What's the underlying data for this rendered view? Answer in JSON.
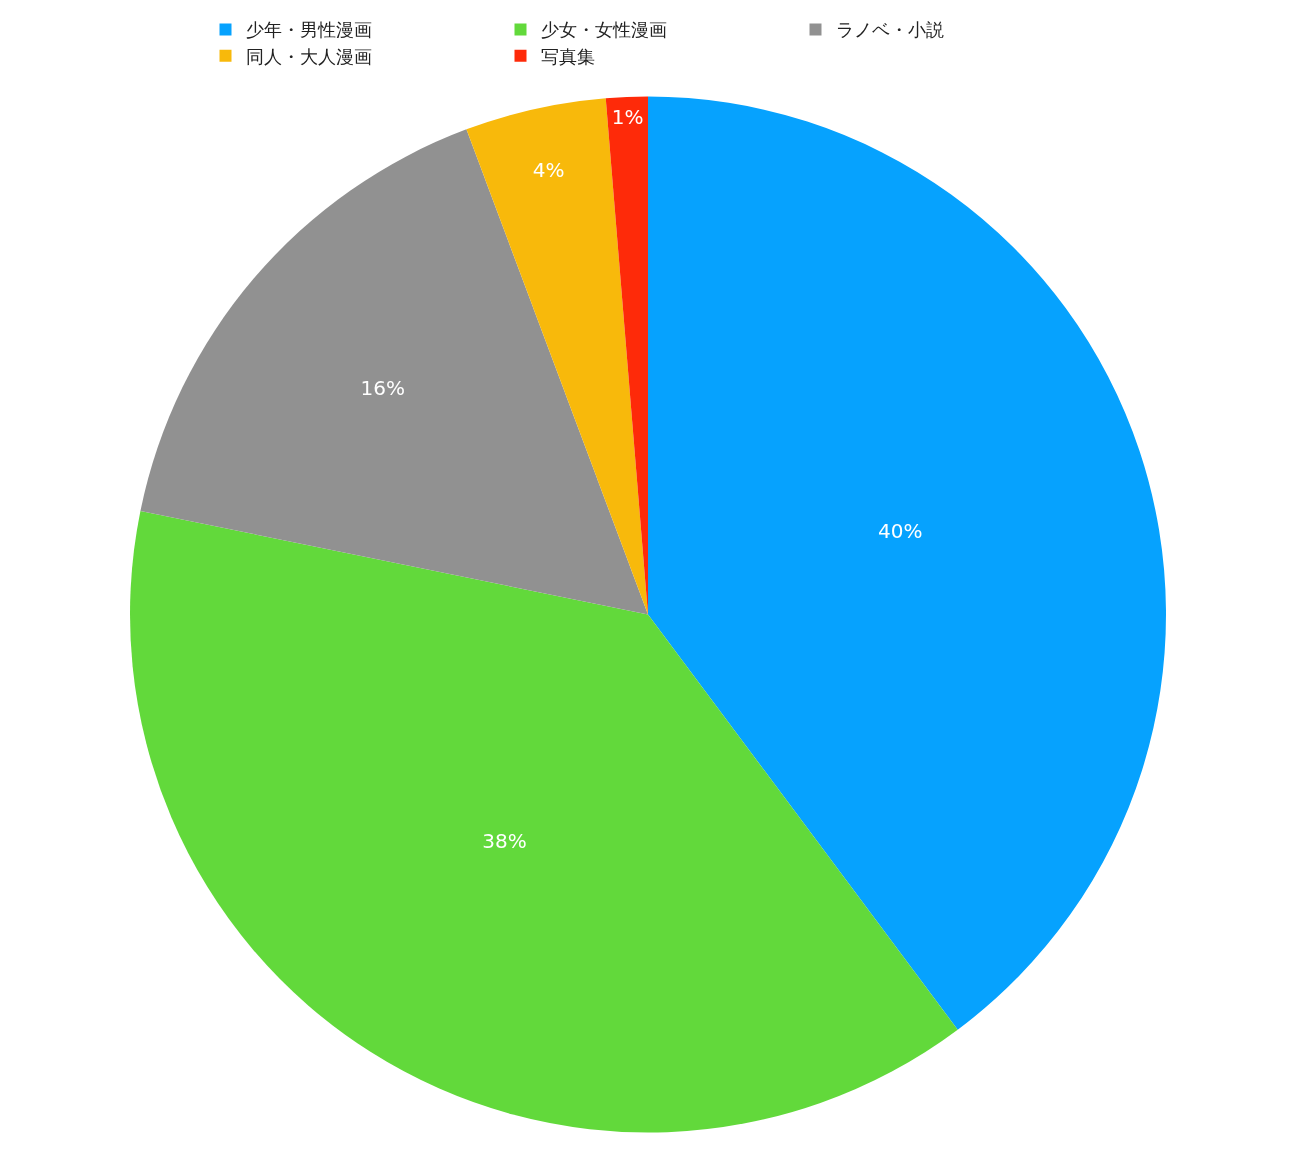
{
  "chart_data": {
    "type": "pie",
    "categories": [
      "少年・男性漫画",
      "少女・女性漫画",
      "ラノベ・小説",
      "同人・大人漫画",
      "写真集"
    ],
    "values": [
      39.8,
      38.4,
      16.1,
      4.4,
      1.3
    ],
    "value_labels": [
      "40%",
      "38%",
      "16%",
      "4%",
      "1%"
    ],
    "colors": [
      "#06a2fe",
      "#62d93b",
      "#919191",
      "#f8b90b",
      "#fe2a09"
    ],
    "legend": "top"
  }
}
